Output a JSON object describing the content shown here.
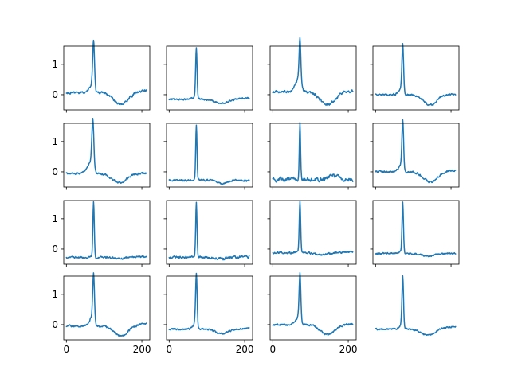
{
  "chart_data": {
    "type": "line",
    "layout": {
      "rows": 4,
      "cols": 4
    },
    "shared_x_axis": true,
    "shared_y_axis": true,
    "xlim": [
      -7,
      221
    ],
    "ylim": [
      -0.5,
      1.6
    ],
    "xticks": [
      0,
      200
    ],
    "xtick_labels": [
      "0",
      "200"
    ],
    "yticks": [
      0,
      1
    ],
    "ytick_labels": [
      "0",
      "1"
    ],
    "color": "#1f77b4",
    "n_points": 213,
    "panels": [
      {
        "id": 1,
        "baseline": 0.07,
        "peak_x": 72,
        "peak_h": 1.4,
        "peak_w": 3.2,
        "ramp_h": 0.32,
        "ramp_w": 14,
        "dip_x": 145,
        "dip_h": -0.42,
        "dip_w": 28,
        "end": 0.15,
        "noise": 0.035,
        "frame": true
      },
      {
        "id": 2,
        "baseline": -0.15,
        "peak_x": 72,
        "peak_h": 1.62,
        "peak_w": 2.6,
        "ramp_h": 0.1,
        "ramp_w": 10,
        "dip_x": 140,
        "dip_h": -0.15,
        "dip_w": 25,
        "end": -0.12,
        "noise": 0.025,
        "frame": true
      },
      {
        "id": 3,
        "baseline": 0.1,
        "peak_x": 72,
        "peak_h": 1.3,
        "peak_w": 3.0,
        "ramp_h": 0.45,
        "ramp_w": 16,
        "dip_x": 145,
        "dip_h": -0.45,
        "dip_w": 28,
        "end": 0.12,
        "noise": 0.04,
        "frame": true
      },
      {
        "id": 4,
        "baseline": 0.0,
        "peak_x": 72,
        "peak_h": 1.45,
        "peak_w": 3.0,
        "ramp_h": 0.25,
        "ramp_w": 12,
        "dip_x": 145,
        "dip_h": -0.35,
        "dip_w": 25,
        "end": 0.02,
        "noise": 0.03,
        "frame": true
      },
      {
        "id": 5,
        "baseline": -0.05,
        "peak_x": 70,
        "peak_h": 1.35,
        "peak_w": 3.5,
        "ramp_h": 0.45,
        "ramp_w": 16,
        "dip_x": 140,
        "dip_h": -0.3,
        "dip_w": 28,
        "end": -0.05,
        "noise": 0.03,
        "frame": true
      },
      {
        "id": 6,
        "baseline": -0.28,
        "peak_x": 72,
        "peak_h": 1.8,
        "peak_w": 2.4,
        "ramp_h": 0.05,
        "ramp_w": 8,
        "dip_x": 140,
        "dip_h": -0.1,
        "dip_w": 20,
        "end": -0.28,
        "noise": 0.03,
        "frame": true
      },
      {
        "id": 7,
        "baseline": -0.25,
        "peak_x": 72,
        "peak_h": 1.8,
        "peak_w": 2.2,
        "ramp_h": 0.03,
        "ramp_w": 8,
        "dip_x": 160,
        "dip_h": 0.12,
        "dip_w": 18,
        "end": -0.25,
        "noise": 0.06,
        "frame": true
      },
      {
        "id": 8,
        "baseline": 0.0,
        "peak_x": 72,
        "peak_h": 1.45,
        "peak_w": 3.0,
        "ramp_h": 0.28,
        "ramp_w": 13,
        "dip_x": 145,
        "dip_h": -0.35,
        "dip_w": 26,
        "end": 0.05,
        "noise": 0.03,
        "frame": true
      },
      {
        "id": 9,
        "baseline": -0.28,
        "peak_x": 72,
        "peak_h": 1.8,
        "peak_w": 2.6,
        "ramp_h": 0.05,
        "ramp_w": 8,
        "dip_x": 140,
        "dip_h": -0.05,
        "dip_w": 20,
        "end": -0.25,
        "noise": 0.03,
        "frame": true
      },
      {
        "id": 10,
        "baseline": -0.28,
        "peak_x": 72,
        "peak_h": 1.8,
        "peak_w": 2.4,
        "ramp_h": 0.03,
        "ramp_w": 8,
        "dip_x": 140,
        "dip_h": -0.05,
        "dip_w": 20,
        "end": -0.25,
        "noise": 0.04,
        "frame": true
      },
      {
        "id": 11,
        "baseline": -0.12,
        "peak_x": 72,
        "peak_h": 1.62,
        "peak_w": 2.6,
        "ramp_h": 0.08,
        "ramp_w": 10,
        "dip_x": 130,
        "dip_h": -0.08,
        "dip_w": 25,
        "end": -0.1,
        "noise": 0.03,
        "frame": true
      },
      {
        "id": 12,
        "baseline": -0.15,
        "peak_x": 72,
        "peak_h": 1.62,
        "peak_w": 2.6,
        "ramp_h": 0.1,
        "ramp_w": 10,
        "dip_x": 140,
        "dip_h": -0.08,
        "dip_w": 25,
        "end": -0.15,
        "noise": 0.025,
        "frame": true
      },
      {
        "id": 13,
        "baseline": -0.05,
        "peak_x": 72,
        "peak_h": 1.38,
        "peak_w": 3.2,
        "ramp_h": 0.35,
        "ramp_w": 14,
        "dip_x": 145,
        "dip_h": -0.35,
        "dip_w": 26,
        "end": 0.02,
        "noise": 0.03,
        "frame": true
      },
      {
        "id": 14,
        "baseline": -0.15,
        "peak_x": 72,
        "peak_h": 1.6,
        "peak_w": 2.8,
        "ramp_h": 0.25,
        "ramp_w": 10,
        "dip_x": 140,
        "dip_h": -0.15,
        "dip_w": 25,
        "end": -0.12,
        "noise": 0.025,
        "frame": true
      },
      {
        "id": 15,
        "baseline": 0.0,
        "peak_x": 72,
        "peak_h": 1.4,
        "peak_w": 3.0,
        "ramp_h": 0.3,
        "ramp_w": 13,
        "dip_x": 145,
        "dip_h": -0.35,
        "dip_w": 26,
        "end": 0.02,
        "noise": 0.03,
        "frame": true
      },
      {
        "id": 16,
        "baseline": -0.15,
        "peak_x": 72,
        "peak_h": 1.55,
        "peak_w": 2.8,
        "ramp_h": 0.2,
        "ramp_w": 10,
        "dip_x": 140,
        "dip_h": -0.22,
        "dip_w": 25,
        "end": -0.08,
        "noise": 0.025,
        "frame": false
      }
    ]
  }
}
